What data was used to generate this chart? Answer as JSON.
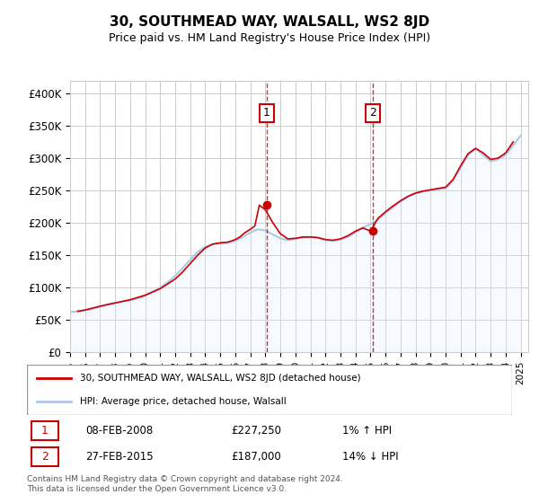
{
  "title": "30, SOUTHMEAD WAY, WALSALL, WS2 8JD",
  "subtitle": "Price paid vs. HM Land Registry's House Price Index (HPI)",
  "ylabel_color": "#000000",
  "background_color": "#ffffff",
  "grid_color": "#cccccc",
  "hpi_color": "#aac8e8",
  "sold_color": "#cc0000",
  "marker_color": "#cc0000",
  "shade_color": "#ddeeff",
  "vline_color": "#cc0000",
  "annotation_box_color": "#cc0000",
  "yticks": [
    0,
    50000,
    100000,
    150000,
    200000,
    250000,
    300000,
    350000,
    400000
  ],
  "ytick_labels": [
    "£0",
    "£50K",
    "£100K",
    "£150K",
    "£200K",
    "£250K",
    "£300K",
    "£350K",
    "£400K"
  ],
  "xlim_start": 1995.0,
  "xlim_end": 2025.5,
  "ylim_min": 0,
  "ylim_max": 420000,
  "sale1_x": 2008.1,
  "sale1_y": 227250,
  "sale2_x": 2015.15,
  "sale2_y": 187000,
  "legend_line1": "30, SOUTHMEAD WAY, WALSALL, WS2 8JD (detached house)",
  "legend_line2": "HPI: Average price, detached house, Walsall",
  "table_row1_label": "1",
  "table_row1_date": "08-FEB-2008",
  "table_row1_price": "£227,250",
  "table_row1_hpi": "1% ↑ HPI",
  "table_row2_label": "2",
  "table_row2_date": "27-FEB-2015",
  "table_row2_price": "£187,000",
  "table_row2_hpi": "14% ↓ HPI",
  "footer": "Contains HM Land Registry data © Crown copyright and database right 2024.\nThis data is licensed under the Open Government Licence v3.0.",
  "hpi_years": [
    1995,
    1995.5,
    1996,
    1996.5,
    1997,
    1997.5,
    1998,
    1998.5,
    1999,
    1999.5,
    2000,
    2000.5,
    2001,
    2001.5,
    2002,
    2002.5,
    2003,
    2003.5,
    2004,
    2004.5,
    2005,
    2005.5,
    2006,
    2006.5,
    2007,
    2007.5,
    2008,
    2008.5,
    2009,
    2009.5,
    2010,
    2010.5,
    2011,
    2011.5,
    2012,
    2012.5,
    2013,
    2013.5,
    2014,
    2014.5,
    2015,
    2015.5,
    2016,
    2016.5,
    2017,
    2017.5,
    2018,
    2018.5,
    2019,
    2019.5,
    2020,
    2020.5,
    2021,
    2021.5,
    2022,
    2022.5,
    2023,
    2023.5,
    2024,
    2024.5,
    2025
  ],
  "hpi_values": [
    62000,
    63000,
    65000,
    67000,
    70000,
    74000,
    76000,
    78000,
    80000,
    83000,
    87000,
    93000,
    100000,
    108000,
    118000,
    130000,
    143000,
    155000,
    163000,
    167000,
    168000,
    169000,
    172000,
    178000,
    185000,
    190000,
    188000,
    182000,
    176000,
    173000,
    175000,
    177000,
    178000,
    177000,
    173000,
    172000,
    174000,
    178000,
    185000,
    193000,
    198000,
    205000,
    215000,
    224000,
    233000,
    240000,
    245000,
    248000,
    250000,
    252000,
    253000,
    265000,
    285000,
    305000,
    315000,
    305000,
    295000,
    298000,
    305000,
    320000,
    335000
  ],
  "sold_years": [
    1995.5,
    1996,
    1997,
    1998,
    1999,
    2000,
    2001,
    2002,
    2002.5,
    2003,
    2003.5,
    2004,
    2004.5,
    2005,
    2005.5,
    2006,
    2006.3,
    2006.6,
    2007,
    2007.3,
    2007.6,
    2008.0,
    2008.5,
    2009,
    2009.5,
    2010,
    2010.5,
    2011,
    2011.5,
    2012,
    2012.5,
    2013,
    2013.5,
    2014,
    2014.5,
    2015.0,
    2015.5,
    2016,
    2016.5,
    2017,
    2017.5,
    2018,
    2018.5,
    2019,
    2019.5,
    2020,
    2020.5,
    2021,
    2021.5,
    2022,
    2022.5,
    2023,
    2023.5,
    2024,
    2024.5
  ],
  "sold_values": [
    63000,
    65000,
    71000,
    76000,
    81000,
    88000,
    98000,
    113000,
    124000,
    137000,
    150000,
    161000,
    167000,
    169000,
    170000,
    174000,
    178000,
    184000,
    190000,
    195000,
    227250,
    220000,
    200000,
    183000,
    175000,
    176000,
    178000,
    178000,
    177000,
    174000,
    173000,
    175000,
    180000,
    187000,
    192000,
    187000,
    207000,
    217000,
    226000,
    234000,
    241000,
    246000,
    249000,
    251000,
    253000,
    255000,
    267000,
    288000,
    307000,
    315000,
    308000,
    298000,
    300000,
    308000,
    325000
  ]
}
